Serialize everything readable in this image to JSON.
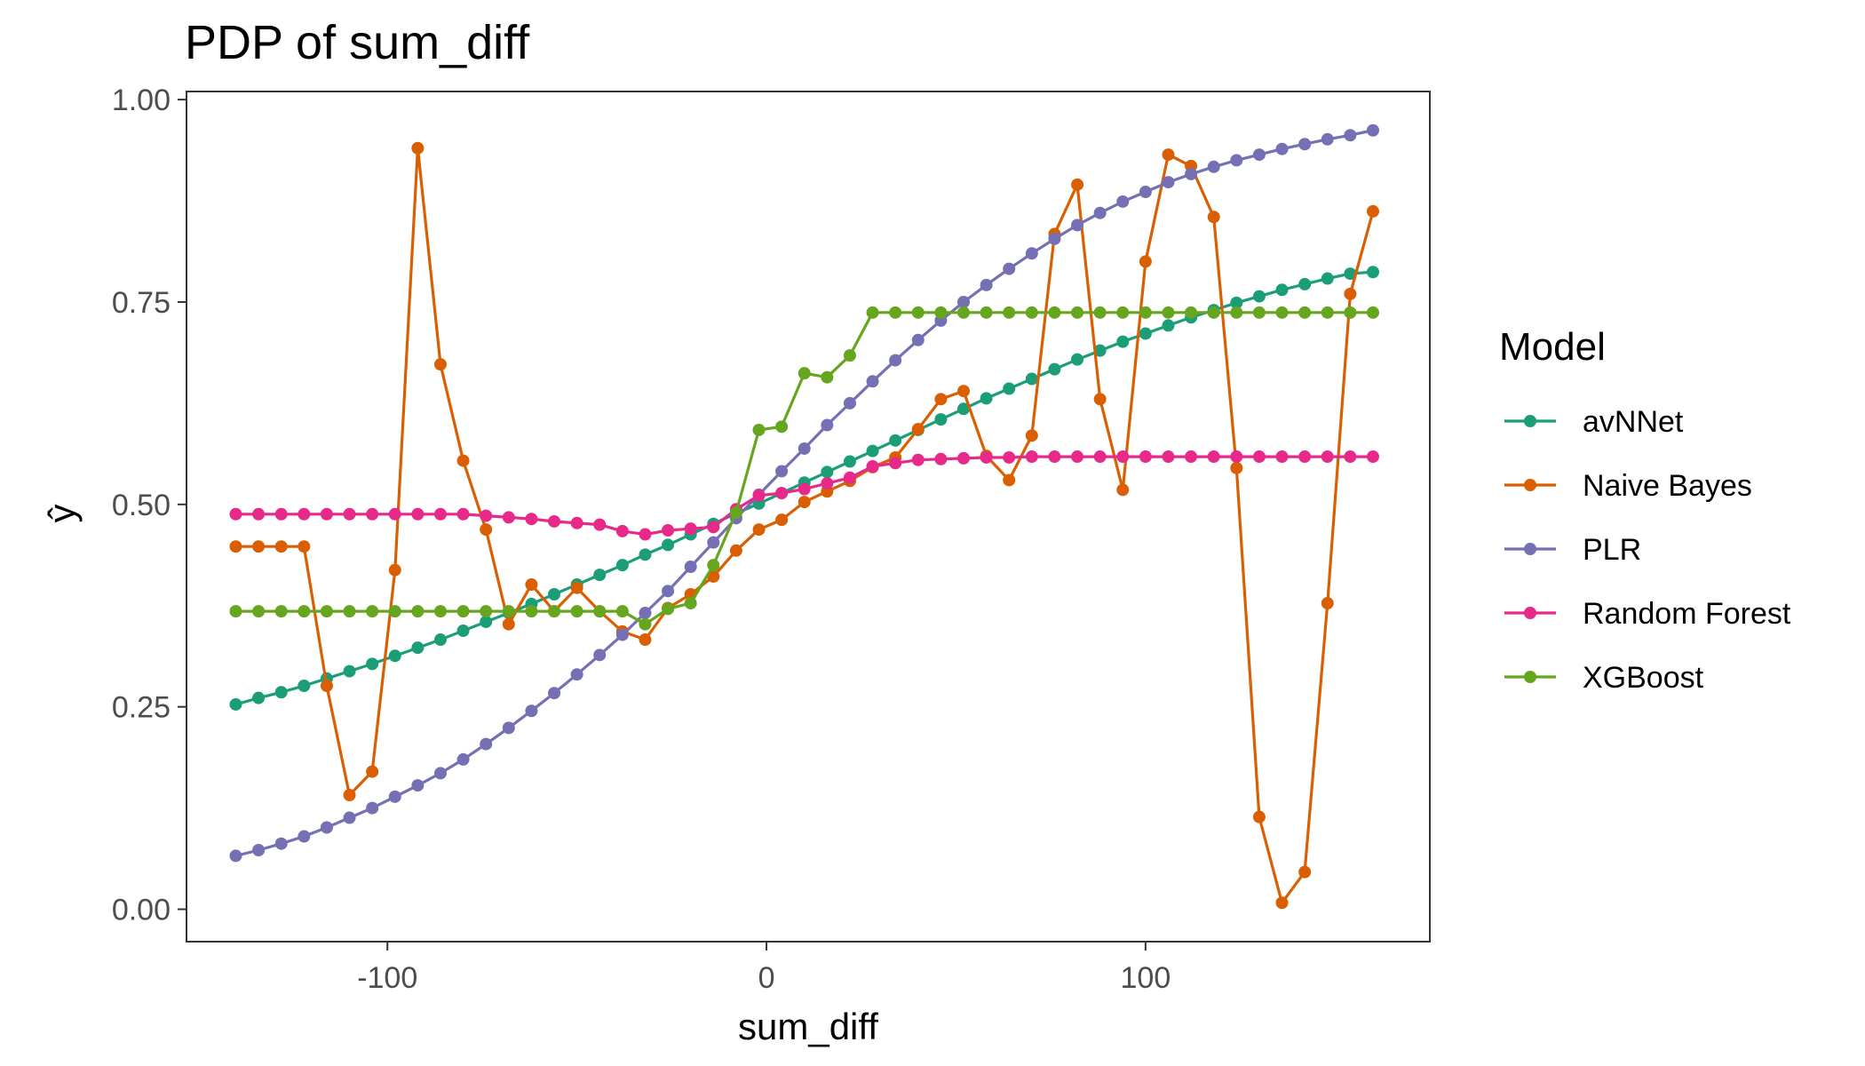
{
  "chart_data": {
    "type": "line",
    "title": "PDP of sum_diff",
    "xlabel": "sum_diff",
    "ylabel": "ŷ",
    "xlim": [
      -153,
      175
    ],
    "ylim": [
      -0.04,
      1.01
    ],
    "xticks": [
      -100,
      0,
      100
    ],
    "xtick_labels": [
      "-100",
      "0",
      "100"
    ],
    "yticks": [
      0,
      0.25,
      0.5,
      0.75,
      1.0
    ],
    "ytick_labels": [
      "0.00",
      "0.25",
      "0.50",
      "0.75",
      "1.00"
    ],
    "grid": false,
    "legend": {
      "title": "Model",
      "position": "right"
    },
    "x": [
      -140,
      -134,
      -128,
      -122,
      -116,
      -110,
      -104,
      -98,
      -92,
      -86,
      -80,
      -74,
      -68,
      -62,
      -56,
      -50,
      -44,
      -38,
      -32,
      -26,
      -20,
      -14,
      -8,
      -2,
      4,
      10,
      16,
      22,
      28,
      34,
      40,
      46,
      52,
      58,
      64,
      70,
      76,
      82,
      88,
      94,
      100,
      106,
      112,
      118,
      124,
      130,
      136,
      142,
      148,
      154,
      160
    ],
    "series": [
      {
        "name": "avNNet",
        "color": "#1b9e77",
        "values": [
          0.253,
          0.261,
          0.268,
          0.276,
          0.285,
          0.294,
          0.303,
          0.313,
          0.323,
          0.333,
          0.344,
          0.355,
          0.366,
          0.377,
          0.389,
          0.401,
          0.413,
          0.425,
          0.438,
          0.45,
          0.463,
          0.476,
          0.489,
          0.501,
          0.514,
          0.527,
          0.54,
          0.553,
          0.566,
          0.579,
          0.592,
          0.605,
          0.618,
          0.631,
          0.643,
          0.655,
          0.667,
          0.679,
          0.69,
          0.701,
          0.711,
          0.721,
          0.731,
          0.74,
          0.749,
          0.757,
          0.765,
          0.772,
          0.779,
          0.785,
          0.787
        ]
      },
      {
        "name": "Naive Bayes",
        "color": "#d95f02",
        "values": [
          0.448,
          0.448,
          0.448,
          0.448,
          0.276,
          0.141,
          0.17,
          0.419,
          0.94,
          0.673,
          0.554,
          0.469,
          0.352,
          0.401,
          0.368,
          0.397,
          0.368,
          0.343,
          0.333,
          0.372,
          0.389,
          0.411,
          0.443,
          0.469,
          0.481,
          0.503,
          0.516,
          0.529,
          0.546,
          0.558,
          0.593,
          0.63,
          0.64,
          0.56,
          0.53,
          0.585,
          0.834,
          0.895,
          0.63,
          0.518,
          0.8,
          0.932,
          0.918,
          0.855,
          0.545,
          0.114,
          0.008,
          0.046,
          0.378,
          0.76,
          0.862
        ]
      },
      {
        "name": "PLR",
        "color": "#7570b3",
        "values": [
          0.066,
          0.073,
          0.081,
          0.09,
          0.101,
          0.113,
          0.125,
          0.139,
          0.153,
          0.168,
          0.185,
          0.204,
          0.224,
          0.245,
          0.267,
          0.29,
          0.314,
          0.339,
          0.366,
          0.393,
          0.423,
          0.453,
          0.483,
          0.512,
          0.541,
          0.569,
          0.598,
          0.625,
          0.652,
          0.678,
          0.703,
          0.727,
          0.75,
          0.771,
          0.791,
          0.81,
          0.828,
          0.845,
          0.86,
          0.874,
          0.886,
          0.898,
          0.908,
          0.917,
          0.925,
          0.932,
          0.939,
          0.945,
          0.951,
          0.956,
          0.962
        ]
      },
      {
        "name": "Random Forest",
        "color": "#e7298a",
        "values": [
          0.488,
          0.488,
          0.488,
          0.488,
          0.488,
          0.488,
          0.488,
          0.488,
          0.488,
          0.488,
          0.488,
          0.486,
          0.484,
          0.482,
          0.479,
          0.477,
          0.475,
          0.467,
          0.463,
          0.468,
          0.47,
          0.472,
          0.494,
          0.511,
          0.514,
          0.519,
          0.526,
          0.533,
          0.547,
          0.551,
          0.555,
          0.556,
          0.557,
          0.558,
          0.558,
          0.559,
          0.559,
          0.559,
          0.559,
          0.559,
          0.559,
          0.559,
          0.559,
          0.559,
          0.559,
          0.559,
          0.559,
          0.559,
          0.559,
          0.559,
          0.559
        ]
      },
      {
        "name": "XGBoost",
        "color": "#66a61e",
        "values": [
          0.368,
          0.368,
          0.368,
          0.368,
          0.368,
          0.368,
          0.368,
          0.368,
          0.368,
          0.368,
          0.368,
          0.368,
          0.368,
          0.368,
          0.368,
          0.368,
          0.368,
          0.368,
          0.352,
          0.371,
          0.378,
          0.425,
          0.49,
          0.592,
          0.596,
          0.662,
          0.657,
          0.684,
          0.737,
          0.737,
          0.737,
          0.737,
          0.737,
          0.737,
          0.737,
          0.737,
          0.737,
          0.737,
          0.737,
          0.737,
          0.737,
          0.737,
          0.737,
          0.737,
          0.737,
          0.737,
          0.737,
          0.737,
          0.737,
          0.737,
          0.737
        ]
      }
    ]
  }
}
